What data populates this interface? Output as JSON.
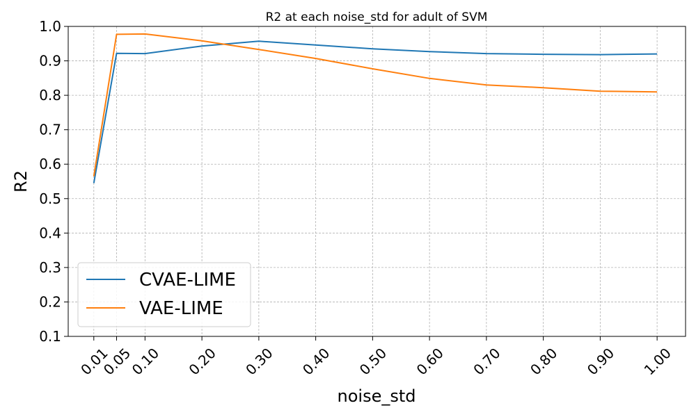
{
  "chart_data": {
    "type": "line",
    "title": "R2 at each noise_std for adult of SVM",
    "xlabel": "noise_std",
    "ylabel": "R2",
    "x": [
      0.01,
      0.05,
      0.1,
      0.2,
      0.3,
      0.4,
      0.5,
      0.6,
      0.7,
      0.8,
      0.9,
      1.0
    ],
    "x_tick_labels": [
      "0.01",
      "0.05",
      "0.10",
      "0.20",
      "0.30",
      "0.40",
      "0.50",
      "0.60",
      "0.70",
      "0.80",
      "0.90",
      "1.00"
    ],
    "y_ticks": [
      0.1,
      0.2,
      0.3,
      0.4,
      0.5,
      0.6,
      0.7,
      0.8,
      0.9,
      1.0
    ],
    "y_tick_labels": [
      "0.1",
      "0.2",
      "0.3",
      "0.4",
      "0.5",
      "0.6",
      "0.7",
      "0.8",
      "0.9",
      "1.0"
    ],
    "ylim": [
      0.1,
      1.0
    ],
    "xlim": [
      -0.035,
      1.05
    ],
    "grid": true,
    "legend_position": "lower-left",
    "series": [
      {
        "name": "CVAE-LIME",
        "color": "#1f77b4",
        "values": [
          0.545,
          0.922,
          0.921,
          0.943,
          0.957,
          0.946,
          0.935,
          0.927,
          0.921,
          0.919,
          0.918,
          0.92
        ]
      },
      {
        "name": "VAE-LIME",
        "color": "#ff7f0e",
        "values": [
          0.565,
          0.977,
          0.978,
          0.958,
          0.933,
          0.907,
          0.877,
          0.849,
          0.83,
          0.822,
          0.812,
          0.81
        ]
      }
    ]
  }
}
